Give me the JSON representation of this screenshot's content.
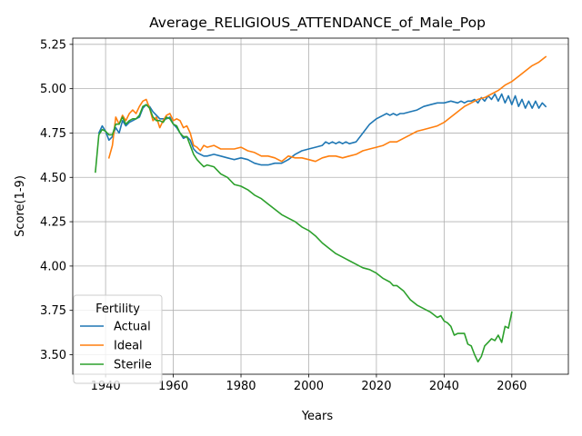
{
  "chart_data": {
    "type": "line",
    "title": "Average_RELIGIOUS_ATTENDANCE_of_Male_Pop",
    "xlabel": "Years",
    "ylabel": "Score(1-9)",
    "xlim": [
      1930.3,
      2076.7
    ],
    "ylim": [
      3.39,
      5.285
    ],
    "x_ticks": [
      1940,
      1960,
      1980,
      2000,
      2020,
      2040,
      2060
    ],
    "y_ticks": [
      3.5,
      3.75,
      4.0,
      4.25,
      4.5,
      4.75,
      5.0,
      5.25
    ],
    "x_tick_labels": [
      "1940",
      "1960",
      "1980",
      "2000",
      "2020",
      "2040",
      "2060"
    ],
    "y_tick_labels": [
      "3.50",
      "3.75",
      "4.00",
      "4.25",
      "4.50",
      "4.75",
      "5.00",
      "5.25"
    ],
    "grid": true,
    "legend": {
      "title": "Fertility",
      "placement": "lower-left"
    },
    "series": [
      {
        "name": "Actual",
        "color": "#1f77b4",
        "points": [
          [
            1938,
            4.75
          ],
          [
            1939,
            4.79
          ],
          [
            1940,
            4.76
          ],
          [
            1941,
            4.71
          ],
          [
            1942,
            4.73
          ],
          [
            1943,
            4.78
          ],
          [
            1944,
            4.75
          ],
          [
            1945,
            4.82
          ],
          [
            1946,
            4.79
          ],
          [
            1947,
            4.81
          ],
          [
            1948,
            4.82
          ],
          [
            1949,
            4.83
          ],
          [
            1950,
            4.84
          ],
          [
            1951,
            4.89
          ],
          [
            1952,
            4.91
          ],
          [
            1953,
            4.9
          ],
          [
            1954,
            4.87
          ],
          [
            1955,
            4.85
          ],
          [
            1956,
            4.83
          ],
          [
            1957,
            4.83
          ],
          [
            1958,
            4.83
          ],
          [
            1959,
            4.84
          ],
          [
            1960,
            4.8
          ],
          [
            1961,
            4.78
          ],
          [
            1962,
            4.75
          ],
          [
            1963,
            4.72
          ],
          [
            1964,
            4.73
          ],
          [
            1965,
            4.71
          ],
          [
            1966,
            4.66
          ],
          [
            1967,
            4.64
          ],
          [
            1968,
            4.63
          ],
          [
            1969,
            4.62
          ],
          [
            1970,
            4.62
          ],
          [
            1972,
            4.63
          ],
          [
            1974,
            4.62
          ],
          [
            1976,
            4.61
          ],
          [
            1978,
            4.6
          ],
          [
            1980,
            4.61
          ],
          [
            1982,
            4.6
          ],
          [
            1984,
            4.58
          ],
          [
            1986,
            4.57
          ],
          [
            1988,
            4.57
          ],
          [
            1990,
            4.58
          ],
          [
            1992,
            4.58
          ],
          [
            1994,
            4.6
          ],
          [
            1996,
            4.63
          ],
          [
            1998,
            4.65
          ],
          [
            2000,
            4.66
          ],
          [
            2002,
            4.67
          ],
          [
            2004,
            4.68
          ],
          [
            2005,
            4.7
          ],
          [
            2006,
            4.69
          ],
          [
            2007,
            4.7
          ],
          [
            2008,
            4.69
          ],
          [
            2009,
            4.7
          ],
          [
            2010,
            4.69
          ],
          [
            2011,
            4.7
          ],
          [
            2012,
            4.69
          ],
          [
            2014,
            4.7
          ],
          [
            2016,
            4.75
          ],
          [
            2018,
            4.8
          ],
          [
            2020,
            4.83
          ],
          [
            2022,
            4.85
          ],
          [
            2023,
            4.86
          ],
          [
            2024,
            4.85
          ],
          [
            2025,
            4.86
          ],
          [
            2026,
            4.85
          ],
          [
            2027,
            4.86
          ],
          [
            2028,
            4.86
          ],
          [
            2030,
            4.87
          ],
          [
            2032,
            4.88
          ],
          [
            2034,
            4.9
          ],
          [
            2036,
            4.91
          ],
          [
            2038,
            4.92
          ],
          [
            2040,
            4.92
          ],
          [
            2042,
            4.93
          ],
          [
            2044,
            4.92
          ],
          [
            2045,
            4.93
          ],
          [
            2046,
            4.92
          ],
          [
            2047,
            4.93
          ],
          [
            2048,
            4.93
          ],
          [
            2049,
            4.94
          ],
          [
            2050,
            4.92
          ],
          [
            2051,
            4.95
          ],
          [
            2052,
            4.93
          ],
          [
            2053,
            4.96
          ],
          [
            2054,
            4.94
          ],
          [
            2055,
            4.97
          ],
          [
            2056,
            4.93
          ],
          [
            2057,
            4.97
          ],
          [
            2058,
            4.92
          ],
          [
            2059,
            4.96
          ],
          [
            2060,
            4.91
          ],
          [
            2061,
            4.96
          ],
          [
            2062,
            4.9
          ],
          [
            2063,
            4.94
          ],
          [
            2064,
            4.89
          ],
          [
            2065,
            4.93
          ],
          [
            2066,
            4.89
          ],
          [
            2067,
            4.93
          ],
          [
            2068,
            4.89
          ],
          [
            2069,
            4.92
          ],
          [
            2070,
            4.9
          ]
        ]
      },
      {
        "name": "Ideal",
        "color": "#ff7f0e",
        "points": [
          [
            1941,
            4.61
          ],
          [
            1942,
            4.68
          ],
          [
            1943,
            4.84
          ],
          [
            1944,
            4.8
          ],
          [
            1945,
            4.85
          ],
          [
            1946,
            4.82
          ],
          [
            1947,
            4.86
          ],
          [
            1948,
            4.88
          ],
          [
            1949,
            4.86
          ],
          [
            1950,
            4.9
          ],
          [
            1951,
            4.93
          ],
          [
            1952,
            4.94
          ],
          [
            1953,
            4.89
          ],
          [
            1954,
            4.82
          ],
          [
            1955,
            4.84
          ],
          [
            1956,
            4.78
          ],
          [
            1957,
            4.82
          ],
          [
            1958,
            4.85
          ],
          [
            1959,
            4.86
          ],
          [
            1960,
            4.82
          ],
          [
            1961,
            4.83
          ],
          [
            1962,
            4.82
          ],
          [
            1963,
            4.78
          ],
          [
            1964,
            4.79
          ],
          [
            1965,
            4.75
          ],
          [
            1966,
            4.68
          ],
          [
            1967,
            4.67
          ],
          [
            1968,
            4.65
          ],
          [
            1969,
            4.68
          ],
          [
            1970,
            4.67
          ],
          [
            1972,
            4.68
          ],
          [
            1974,
            4.66
          ],
          [
            1976,
            4.66
          ],
          [
            1978,
            4.66
          ],
          [
            1980,
            4.67
          ],
          [
            1982,
            4.65
          ],
          [
            1984,
            4.64
          ],
          [
            1986,
            4.62
          ],
          [
            1988,
            4.62
          ],
          [
            1990,
            4.61
          ],
          [
            1992,
            4.59
          ],
          [
            1994,
            4.62
          ],
          [
            1996,
            4.61
          ],
          [
            1998,
            4.61
          ],
          [
            2000,
            4.6
          ],
          [
            2002,
            4.59
          ],
          [
            2004,
            4.61
          ],
          [
            2006,
            4.62
          ],
          [
            2008,
            4.62
          ],
          [
            2010,
            4.61
          ],
          [
            2012,
            4.62
          ],
          [
            2014,
            4.63
          ],
          [
            2016,
            4.65
          ],
          [
            2018,
            4.66
          ],
          [
            2020,
            4.67
          ],
          [
            2022,
            4.68
          ],
          [
            2024,
            4.7
          ],
          [
            2026,
            4.7
          ],
          [
            2028,
            4.72
          ],
          [
            2030,
            4.74
          ],
          [
            2032,
            4.76
          ],
          [
            2034,
            4.77
          ],
          [
            2036,
            4.78
          ],
          [
            2038,
            4.79
          ],
          [
            2040,
            4.81
          ],
          [
            2042,
            4.84
          ],
          [
            2044,
            4.87
          ],
          [
            2046,
            4.9
          ],
          [
            2048,
            4.92
          ],
          [
            2050,
            4.94
          ],
          [
            2052,
            4.95
          ],
          [
            2054,
            4.97
          ],
          [
            2056,
            4.99
          ],
          [
            2058,
            5.02
          ],
          [
            2060,
            5.04
          ],
          [
            2062,
            5.07
          ],
          [
            2064,
            5.1
          ],
          [
            2066,
            5.13
          ],
          [
            2068,
            5.15
          ],
          [
            2070,
            5.18
          ]
        ]
      },
      {
        "name": "Sterile",
        "color": "#2ca02c",
        "points": [
          [
            1937,
            4.53
          ],
          [
            1938,
            4.74
          ],
          [
            1939,
            4.77
          ],
          [
            1940,
            4.76
          ],
          [
            1941,
            4.74
          ],
          [
            1942,
            4.74
          ],
          [
            1943,
            4.8
          ],
          [
            1944,
            4.8
          ],
          [
            1945,
            4.84
          ],
          [
            1946,
            4.8
          ],
          [
            1947,
            4.82
          ],
          [
            1948,
            4.83
          ],
          [
            1949,
            4.83
          ],
          [
            1950,
            4.85
          ],
          [
            1951,
            4.9
          ],
          [
            1952,
            4.91
          ],
          [
            1953,
            4.89
          ],
          [
            1954,
            4.84
          ],
          [
            1955,
            4.82
          ],
          [
            1956,
            4.82
          ],
          [
            1957,
            4.81
          ],
          [
            1958,
            4.84
          ],
          [
            1959,
            4.83
          ],
          [
            1960,
            4.8
          ],
          [
            1961,
            4.79
          ],
          [
            1962,
            4.75
          ],
          [
            1963,
            4.73
          ],
          [
            1964,
            4.73
          ],
          [
            1965,
            4.68
          ],
          [
            1966,
            4.63
          ],
          [
            1967,
            4.6
          ],
          [
            1968,
            4.58
          ],
          [
            1969,
            4.56
          ],
          [
            1970,
            4.57
          ],
          [
            1972,
            4.56
          ],
          [
            1974,
            4.52
          ],
          [
            1976,
            4.5
          ],
          [
            1978,
            4.46
          ],
          [
            1980,
            4.45
          ],
          [
            1982,
            4.43
          ],
          [
            1984,
            4.4
          ],
          [
            1986,
            4.38
          ],
          [
            1988,
            4.35
          ],
          [
            1990,
            4.32
          ],
          [
            1992,
            4.29
          ],
          [
            1994,
            4.27
          ],
          [
            1996,
            4.25
          ],
          [
            1998,
            4.22
          ],
          [
            2000,
            4.2
          ],
          [
            2002,
            4.17
          ],
          [
            2004,
            4.13
          ],
          [
            2006,
            4.1
          ],
          [
            2008,
            4.07
          ],
          [
            2010,
            4.05
          ],
          [
            2012,
            4.03
          ],
          [
            2014,
            4.01
          ],
          [
            2016,
            3.99
          ],
          [
            2018,
            3.98
          ],
          [
            2020,
            3.96
          ],
          [
            2022,
            3.93
          ],
          [
            2024,
            3.91
          ],
          [
            2025,
            3.89
          ],
          [
            2026,
            3.89
          ],
          [
            2028,
            3.86
          ],
          [
            2030,
            3.81
          ],
          [
            2032,
            3.78
          ],
          [
            2034,
            3.76
          ],
          [
            2036,
            3.74
          ],
          [
            2038,
            3.71
          ],
          [
            2039,
            3.72
          ],
          [
            2040,
            3.69
          ],
          [
            2041,
            3.68
          ],
          [
            2042,
            3.66
          ],
          [
            2043,
            3.61
          ],
          [
            2044,
            3.62
          ],
          [
            2045,
            3.62
          ],
          [
            2046,
            3.62
          ],
          [
            2047,
            3.56
          ],
          [
            2048,
            3.55
          ],
          [
            2049,
            3.5
          ],
          [
            2050,
            3.46
          ],
          [
            2051,
            3.49
          ],
          [
            2052,
            3.55
          ],
          [
            2053,
            3.57
          ],
          [
            2054,
            3.59
          ],
          [
            2055,
            3.58
          ],
          [
            2056,
            3.61
          ],
          [
            2057,
            3.57
          ],
          [
            2058,
            3.66
          ],
          [
            2059,
            3.65
          ],
          [
            2060,
            3.74
          ]
        ]
      }
    ]
  }
}
